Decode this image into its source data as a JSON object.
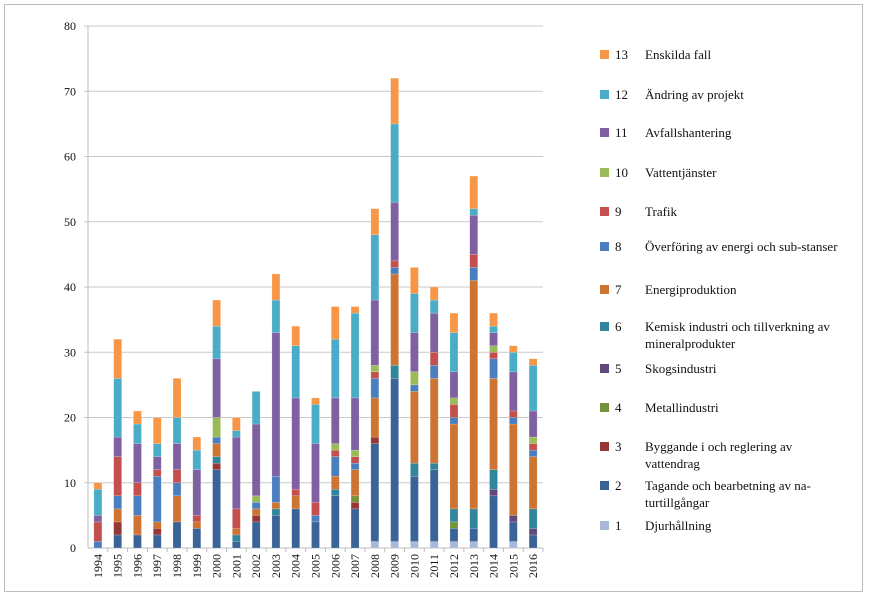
{
  "chart_data": {
    "type": "bar",
    "stacked": true,
    "categories": [
      "1994",
      "1995",
      "1996",
      "1997",
      "1998",
      "1999",
      "2000",
      "2001",
      "2002",
      "2003",
      "2004",
      "2005",
      "2006",
      "2007",
      "2008",
      "2009",
      "2010",
      "2011",
      "2012",
      "2013",
      "2014",
      "2015",
      "2016"
    ],
    "ylim": [
      0,
      80
    ],
    "yticks": [
      "0",
      "10",
      "20",
      "30",
      "40",
      "50",
      "60",
      "70",
      "80"
    ],
    "grid": true,
    "legend_position": "right",
    "series": [
      {
        "id": "1",
        "name": "Djurhållning",
        "color": "#a7b8d9",
        "values": [
          0,
          0,
          0,
          0,
          0,
          0,
          0,
          0,
          0,
          0,
          0,
          0,
          0,
          0,
          1,
          1,
          1,
          1,
          1,
          1,
          0,
          1,
          0
        ]
      },
      {
        "id": "2",
        "name": "Tagande och bearbetning av na-turtillgångar",
        "color": "#3a6397",
        "values": [
          0,
          2,
          2,
          2,
          4,
          3,
          12,
          1,
          4,
          5,
          6,
          4,
          8,
          6,
          15,
          25,
          10,
          11,
          2,
          2,
          8,
          3,
          2
        ]
      },
      {
        "id": "3",
        "name": "Byggande i och reglering av vattendrag",
        "color": "#953836",
        "values": [
          0,
          2,
          0,
          1,
          0,
          0,
          1,
          0,
          1,
          0,
          0,
          0,
          0,
          1,
          1,
          0,
          0,
          0,
          0,
          0,
          0,
          0,
          0
        ]
      },
      {
        "id": "4",
        "name": "Metallindustri",
        "color": "#76923c",
        "values": [
          0,
          0,
          0,
          0,
          0,
          0,
          0,
          0,
          0,
          0,
          0,
          0,
          0,
          1,
          0,
          0,
          0,
          0,
          1,
          0,
          0,
          0,
          0
        ]
      },
      {
        "id": "5",
        "name": "Skogsindustri",
        "color": "#5f4a7c",
        "values": [
          0,
          0,
          0,
          0,
          0,
          0,
          0,
          0,
          0,
          0,
          0,
          0,
          0,
          0,
          0,
          0,
          0,
          0,
          0,
          0,
          1,
          1,
          1
        ]
      },
      {
        "id": "6",
        "name": "Kemisk industri och tillverkning av mineralprodukter",
        "color": "#31869b",
        "values": [
          0,
          0,
          0,
          0,
          0,
          0,
          1,
          1,
          0,
          1,
          0,
          0,
          1,
          0,
          0,
          2,
          2,
          1,
          2,
          3,
          3,
          0,
          3
        ]
      },
      {
        "id": "7",
        "name": "Energiproduktion",
        "color": "#cd7432",
        "values": [
          0,
          2,
          3,
          1,
          4,
          1,
          2,
          1,
          1,
          1,
          2,
          0,
          2,
          4,
          6,
          14,
          11,
          13,
          13,
          35,
          14,
          14,
          8
        ]
      },
      {
        "id": "8",
        "name": "Överföring av energi och sub-stanser",
        "color": "#4a7ebf",
        "values": [
          1,
          2,
          3,
          7,
          2,
          0,
          1,
          0,
          1,
          4,
          0,
          1,
          3,
          1,
          3,
          1,
          1,
          2,
          1,
          2,
          3,
          1,
          1
        ]
      },
      {
        "id": "9",
        "name": "Trafik",
        "color": "#c4504d",
        "values": [
          3,
          6,
          2,
          1,
          2,
          1,
          0,
          3,
          0,
          0,
          1,
          2,
          1,
          1,
          1,
          1,
          0,
          2,
          2,
          2,
          1,
          1,
          1
        ]
      },
      {
        "id": "10",
        "name": "Vattentjänster",
        "color": "#9bbb59",
        "values": [
          0,
          0,
          0,
          0,
          0,
          0,
          3,
          0,
          1,
          0,
          0,
          0,
          1,
          1,
          1,
          0,
          2,
          0,
          1,
          0,
          1,
          0,
          1
        ]
      },
      {
        "id": "11",
        "name": "Avfallshantering",
        "color": "#7f61a1",
        "values": [
          1,
          3,
          6,
          2,
          4,
          7,
          9,
          11,
          11,
          22,
          14,
          9,
          7,
          8,
          10,
          9,
          6,
          6,
          4,
          6,
          2,
          6,
          4
        ]
      },
      {
        "id": "12",
        "name": "Ändring av projekt",
        "color": "#4aacc6",
        "values": [
          4,
          9,
          3,
          2,
          4,
          3,
          5,
          1,
          5,
          5,
          8,
          6,
          9,
          13,
          10,
          12,
          6,
          2,
          6,
          1,
          1,
          3,
          7
        ]
      },
      {
        "id": "13",
        "name": "Enskilda fall",
        "color": "#f79646",
        "values": [
          1,
          6,
          2,
          4,
          6,
          2,
          4,
          2,
          0,
          4,
          3,
          1,
          5,
          1,
          4,
          7,
          4,
          2,
          3,
          5,
          2,
          1,
          1
        ]
      }
    ]
  }
}
